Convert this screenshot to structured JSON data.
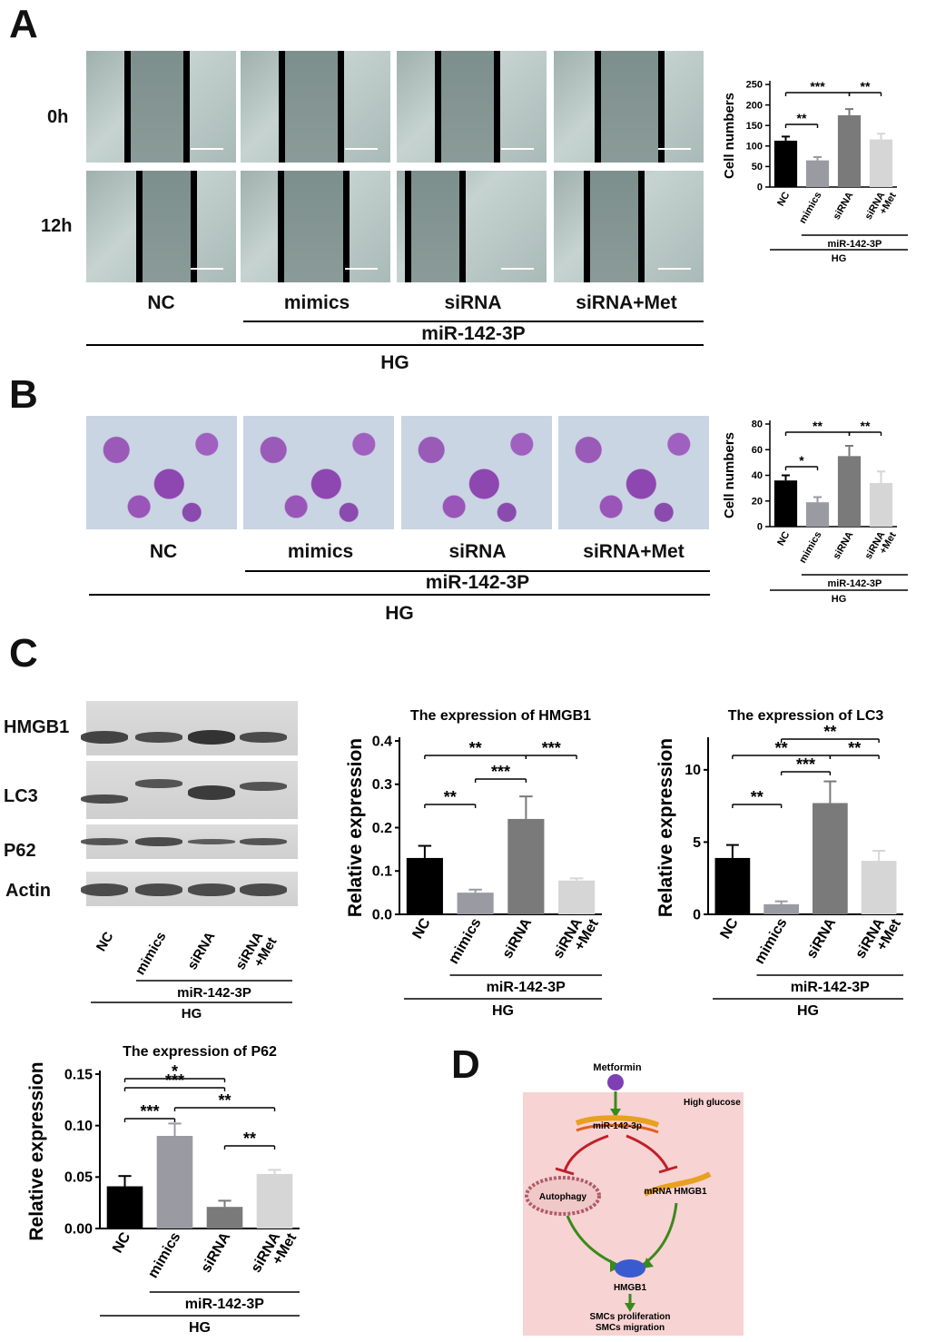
{
  "panel_labels": [
    "A",
    "B",
    "C",
    "D"
  ],
  "groups": {
    "nc": "NC",
    "mimics": "mimics",
    "sirna": "siRNA",
    "sirna_met": "siRNA+Met",
    "mir": "miR-142-3P",
    "hg": "HG"
  },
  "time_labels": [
    "0h",
    "12h"
  ],
  "blot_labels": [
    "HMGB1",
    "LC3",
    "P62",
    "Actin"
  ],
  "colors": {
    "nc": "#000000",
    "mimics": "#9a9aa2",
    "sirna": "#7a7a7a",
    "sirna_met": "#d6d6d6",
    "arrow": "#3a8a1a",
    "inhibit": "#c0202a",
    "diagram_bg": "#f7d3d3"
  },
  "chart_data": [
    {
      "id": "A",
      "type": "bar",
      "categories": [
        "NC",
        "mimics",
        "siRNA",
        "siRNA\n+Met"
      ],
      "values": [
        113,
        65,
        175,
        116
      ],
      "errors": [
        10,
        8,
        15,
        14
      ],
      "ylabel": "Cell numbers",
      "ylim": [
        0,
        250
      ],
      "yticks": [
        "0",
        "50",
        "100",
        "150",
        "200",
        "250"
      ],
      "yticks_v": [
        0,
        50,
        100,
        150,
        200,
        250
      ],
      "sig": [
        {
          "a": 0,
          "b": 1,
          "label": "**"
        },
        {
          "a": 0,
          "b": 2,
          "label": "***"
        },
        {
          "a": 2,
          "b": 3,
          "label": "**"
        }
      ],
      "group_mir": "miR-142-3P",
      "group_hg": "HG"
    },
    {
      "id": "B",
      "type": "bar",
      "categories": [
        "NC",
        "mimics",
        "siRNA",
        "siRNA\n+Met"
      ],
      "values": [
        36,
        19,
        55,
        34
      ],
      "errors": [
        4,
        4,
        8,
        9
      ],
      "ylabel": "Cell numbers",
      "ylim": [
        0,
        80
      ],
      "yticks": [
        "0",
        "20",
        "40",
        "60",
        "80"
      ],
      "yticks_v": [
        0,
        20,
        40,
        60,
        80
      ],
      "sig": [
        {
          "a": 0,
          "b": 1,
          "label": "*"
        },
        {
          "a": 0,
          "b": 2,
          "label": "**"
        },
        {
          "a": 2,
          "b": 3,
          "label": "**"
        }
      ],
      "group_mir": "miR-142-3P",
      "group_hg": "HG"
    },
    {
      "id": "HMGB1",
      "type": "bar",
      "title": "The expression of HMGB1",
      "categories": [
        "NC",
        "mimics",
        "siRNA",
        "siRNA\n+Met"
      ],
      "values": [
        0.13,
        0.05,
        0.22,
        0.078
      ],
      "errors": [
        0.028,
        0.007,
        0.052,
        0.005
      ],
      "ylabel": "Relative expression",
      "ylim": [
        0,
        0.4
      ],
      "yticks": [
        "0.0",
        "0.1",
        "0.2",
        "0.3",
        "0.4"
      ],
      "yticks_v": [
        0,
        0.1,
        0.2,
        0.3,
        0.4
      ],
      "sig": [
        {
          "a": 0,
          "b": 1,
          "label": "**"
        },
        {
          "a": 1,
          "b": 2,
          "label": "***"
        },
        {
          "a": 0,
          "b": 2,
          "label": "**"
        },
        {
          "a": 2,
          "b": 3,
          "label": "***"
        }
      ],
      "group_mir": "miR-142-3P",
      "group_hg": "HG"
    },
    {
      "id": "LC3",
      "type": "bar",
      "title": "The expression of LC3",
      "categories": [
        "NC",
        "mimics",
        "siRNA",
        "siRNA\n+Met"
      ],
      "values": [
        3.9,
        0.7,
        7.7,
        3.7
      ],
      "errors": [
        0.9,
        0.2,
        1.5,
        0.7
      ],
      "ylabel": "Relative expression",
      "ylim": [
        0,
        12
      ],
      "yticks": [
        "0",
        "5",
        "10"
      ],
      "yticks_v": [
        0,
        5,
        10
      ],
      "sig": [
        {
          "a": 0,
          "b": 1,
          "label": "**"
        },
        {
          "a": 1,
          "b": 2,
          "label": "***"
        },
        {
          "a": 2,
          "b": 3,
          "label": "**"
        },
        {
          "a": 0,
          "b": 2,
          "label": "**"
        },
        {
          "a": 1,
          "b": 3,
          "label": "**"
        }
      ],
      "group_mir": "miR-142-3P",
      "group_hg": "HG"
    },
    {
      "id": "P62",
      "type": "bar",
      "title": "The expression of P62",
      "categories": [
        "NC",
        "mimics",
        "siRNA",
        "siRNA\n+Met"
      ],
      "values": [
        0.041,
        0.09,
        0.021,
        0.053
      ],
      "errors": [
        0.01,
        0.012,
        0.006,
        0.004
      ],
      "ylabel": "Relative expression",
      "ylim": [
        0,
        0.15
      ],
      "yticks": [
        "0.00",
        "0.05",
        "0.10",
        "0.15"
      ],
      "yticks_v": [
        0,
        0.05,
        0.1,
        0.15
      ],
      "sig": [
        {
          "a": 0,
          "b": 1,
          "label": "***"
        },
        {
          "a": 2,
          "b": 3,
          "label": "**"
        },
        {
          "a": 1,
          "b": 3,
          "label": "**"
        },
        {
          "a": 0,
          "b": 2,
          "label": "***"
        },
        {
          "a": 0,
          "b": 2,
          "label": "*"
        }
      ],
      "group_mir": "miR-142-3P",
      "group_hg": "HG"
    }
  ],
  "diagram": {
    "metformin": "Metformin",
    "high_glucose": "High glucose",
    "mir": "miR-142-3p",
    "autophagy": "Autophagy",
    "mrna": "mRNA HMGB1",
    "hmgb1": "HMGB1",
    "out1": "SMCs proliferation",
    "out2": "SMCs migration"
  }
}
